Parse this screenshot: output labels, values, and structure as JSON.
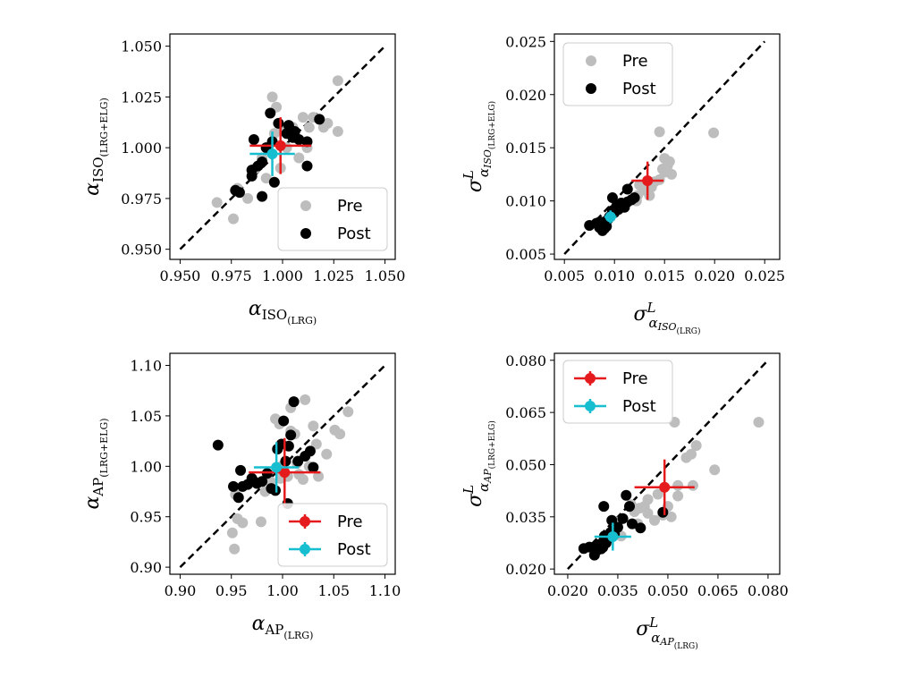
{
  "chart_data": [
    {
      "type": "scatter",
      "panel": "top-left",
      "xlabel": {
        "base": "α",
        "sub": "ISO",
        "subsub": "(LRG)"
      },
      "ylabel": {
        "base": "α",
        "sub": "ISO",
        "subsub": "(LRG+ELG)"
      },
      "xlim": [
        0.945,
        1.055
      ],
      "ylim": [
        0.945,
        1.056
      ],
      "xticks": [
        0.95,
        0.975,
        1.0,
        1.025,
        1.05
      ],
      "yticks": [
        0.95,
        0.975,
        1.0,
        1.025,
        1.05
      ],
      "xtick_labels": [
        "0.950",
        "0.975",
        "1.000",
        "1.025",
        "1.050"
      ],
      "ytick_labels": [
        "0.950",
        "0.975",
        "1.000",
        "1.025",
        "1.050"
      ],
      "legend": {
        "placement": "lower-right",
        "style": "markers",
        "entries": [
          "Pre",
          "Post"
        ]
      },
      "series": [
        {
          "name": "Pre",
          "color": "#bdbdbd",
          "points": [
            [
              0.968,
              0.973
            ],
            [
              0.976,
              0.965
            ],
            [
              0.978,
              0.98
            ],
            [
              0.983,
              0.975
            ],
            [
              0.987,
              0.99
            ],
            [
              0.99,
              0.995
            ],
            [
              0.992,
              0.985
            ],
            [
              0.995,
              1.025
            ],
            [
              0.997,
              1.02
            ],
            [
              1.0,
              1.01
            ],
            [
              1.002,
              1.0
            ],
            [
              1.005,
              1.01
            ],
            [
              1.006,
              1.005
            ],
            [
              1.008,
              0.995
            ],
            [
              1.01,
              1.015
            ],
            [
              1.012,
              1.0
            ],
            [
              1.013,
              1.01
            ],
            [
              1.015,
              1.015
            ],
            [
              1.02,
              1.01
            ],
            [
              1.022,
              1.012
            ],
            [
              1.027,
              1.033
            ],
            [
              1.027,
              1.008
            ],
            [
              0.996,
              1.007
            ],
            [
              0.999,
              0.99
            ]
          ]
        },
        {
          "name": "Post",
          "color": "#000000",
          "points": [
            [
              0.977,
              0.979
            ],
            [
              0.979,
              0.978
            ],
            [
              0.985,
              0.986
            ],
            [
              0.985,
              0.989
            ],
            [
              0.986,
              1.004
            ],
            [
              0.988,
              0.991
            ],
            [
              0.99,
              0.976
            ],
            [
              0.99,
              0.993
            ],
            [
              0.992,
              1.0
            ],
            [
              0.994,
              1.017
            ],
            [
              0.995,
              1.003
            ],
            [
              0.996,
              0.983
            ],
            [
              0.998,
              1.012
            ],
            [
              1.002,
              1.007
            ],
            [
              1.003,
              1.011
            ],
            [
              1.005,
              1.005
            ],
            [
              1.006,
              1.008
            ],
            [
              1.008,
              1.004
            ],
            [
              1.012,
              0.991
            ],
            [
              1.012,
              1.003
            ],
            [
              1.018,
              1.014
            ]
          ]
        }
      ],
      "summary": [
        {
          "name": "Pre",
          "color": "#e41a1c",
          "x": 0.999,
          "y": 1.001,
          "xerr": 0.015,
          "yerr": 0.014
        },
        {
          "name": "Post",
          "color": "#17becf",
          "x": 0.995,
          "y": 0.997,
          "xerr": 0.011,
          "yerr": 0.011
        }
      ]
    },
    {
      "type": "scatter",
      "panel": "top-right",
      "xlabel": {
        "base": "σ",
        "sup": "L",
        "sub": "α",
        "subsub": "ISO",
        "subsubsub": "(LRG)"
      },
      "ylabel": {
        "base": "σ",
        "sup": "L",
        "sub": "α",
        "subsub": "ISO",
        "subsubsub": "(LRG+ELG)"
      },
      "xlim": [
        0.004,
        0.0265
      ],
      "ylim": [
        0.0045,
        0.0257
      ],
      "xticks": [
        0.005,
        0.01,
        0.015,
        0.02,
        0.025
      ],
      "yticks": [
        0.005,
        0.01,
        0.015,
        0.02,
        0.025
      ],
      "xtick_labels": [
        "0.005",
        "0.010",
        "0.015",
        "0.020",
        "0.025"
      ],
      "ytick_labels": [
        "0.005",
        "0.010",
        "0.015",
        "0.020",
        "0.025"
      ],
      "legend": {
        "placement": "upper-left",
        "style": "markers",
        "entries": [
          "Pre",
          "Post"
        ]
      },
      "series": [
        {
          "name": "Pre",
          "color": "#bdbdbd",
          "points": [
            [
              0.0145,
              0.0165
            ],
            [
              0.0199,
              0.0164
            ],
            [
              0.015,
              0.014
            ],
            [
              0.0153,
              0.0133
            ],
            [
              0.0155,
              0.0137
            ],
            [
              0.0148,
              0.013
            ],
            [
              0.0157,
              0.0125
            ],
            [
              0.0145,
              0.012
            ],
            [
              0.014,
              0.0118
            ],
            [
              0.0137,
              0.0113
            ],
            [
              0.013,
              0.011
            ],
            [
              0.0123,
              0.0105
            ],
            [
              0.0115,
              0.01
            ],
            [
              0.011,
              0.0095
            ],
            [
              0.0105,
              0.0098
            ],
            [
              0.0122,
              0.01
            ],
            [
              0.0135,
              0.0105
            ],
            [
              0.01,
              0.009
            ],
            [
              0.0095,
              0.0085
            ],
            [
              0.009,
              0.008
            ],
            [
              0.0125,
              0.0115
            ],
            [
              0.015,
              0.0127
            ]
          ]
        },
        {
          "name": "Post",
          "color": "#000000",
          "points": [
            [
              0.0075,
              0.0077
            ],
            [
              0.0082,
              0.0079
            ],
            [
              0.0085,
              0.0075
            ],
            [
              0.0087,
              0.008
            ],
            [
              0.0088,
              0.0072
            ],
            [
              0.009,
              0.0074
            ],
            [
              0.0092,
              0.0076
            ],
            [
              0.0093,
              0.0082
            ],
            [
              0.0095,
              0.0085
            ],
            [
              0.0097,
              0.0087
            ],
            [
              0.0098,
              0.0091
            ],
            [
              0.01,
              0.0089
            ],
            [
              0.0102,
              0.0095
            ],
            [
              0.0104,
              0.0092
            ],
            [
              0.0098,
              0.0103
            ],
            [
              0.0107,
              0.0098
            ],
            [
              0.011,
              0.0094
            ],
            [
              0.0113,
              0.0099
            ],
            [
              0.0117,
              0.0101
            ],
            [
              0.012,
              0.0103
            ],
            [
              0.0113,
              0.0111
            ],
            [
              0.0085,
              0.008
            ]
          ]
        }
      ],
      "summary": [
        {
          "name": "Pre",
          "color": "#e41a1c",
          "x": 0.0133,
          "y": 0.0119,
          "xerr": 0.0016,
          "yerr": 0.0018
        },
        {
          "name": "Post",
          "color": "#17becf",
          "x": 0.0096,
          "y": 0.0085,
          "xerr": 0.0006,
          "yerr": 0.0006
        }
      ]
    },
    {
      "type": "scatter",
      "panel": "bottom-left",
      "xlabel": {
        "base": "α",
        "sub": "AP",
        "subsub": "(LRG)"
      },
      "ylabel": {
        "base": "α",
        "sub": "AP",
        "subsub": "(LRG+ELG)"
      },
      "xlim": [
        0.89,
        1.11
      ],
      "ylim": [
        0.893,
        1.112
      ],
      "xticks": [
        0.9,
        0.95,
        1.0,
        1.05,
        1.1
      ],
      "yticks": [
        0.9,
        0.95,
        1.0,
        1.05,
        1.1
      ],
      "xtick_labels": [
        "0.90",
        "0.95",
        "1.00",
        "1.05",
        "1.10"
      ],
      "ytick_labels": [
        "0.90",
        "0.95",
        "1.00",
        "1.05",
        "1.10"
      ],
      "legend": {
        "placement": "lower-right",
        "style": "errorbar",
        "entries": [
          "Pre",
          "Post"
        ]
      },
      "series": [
        {
          "name": "Pre",
          "color": "#bdbdbd",
          "points": [
            [
              0.951,
              0.934
            ],
            [
              0.953,
              0.918
            ],
            [
              0.956,
              0.948
            ],
            [
              0.961,
              0.944
            ],
            [
              0.954,
              0.972
            ],
            [
              0.979,
              0.945
            ],
            [
              0.983,
              0.975
            ],
            [
              0.988,
              0.985
            ],
            [
              0.993,
              1.047
            ],
            [
              0.997,
              1.042
            ],
            [
              0.999,
              1.0
            ],
            [
              1.005,
              0.99
            ],
            [
              1.008,
              1.058
            ],
            [
              1.012,
              1.032
            ],
            [
              1.014,
              1.003
            ],
            [
              1.016,
              0.992
            ],
            [
              1.02,
              0.987
            ],
            [
              1.022,
              1.066
            ],
            [
              1.026,
              1.0
            ],
            [
              1.03,
              1.04
            ],
            [
              1.033,
              1.022
            ],
            [
              1.035,
              0.99
            ],
            [
              1.043,
              1.012
            ],
            [
              1.051,
              1.036
            ],
            [
              1.056,
              1.032
            ],
            [
              1.064,
              1.054
            ],
            [
              1.008,
              1.035
            ],
            [
              0.998,
              0.988
            ]
          ]
        },
        {
          "name": "Post",
          "color": "#000000",
          "points": [
            [
              0.937,
              1.021
            ],
            [
              0.952,
              0.98
            ],
            [
              0.957,
              0.969
            ],
            [
              0.959,
              0.996
            ],
            [
              0.961,
              0.98
            ],
            [
              0.966,
              0.982
            ],
            [
              0.97,
              0.988
            ],
            [
              0.972,
              0.985
            ],
            [
              0.975,
              0.983
            ],
            [
              0.98,
              0.985
            ],
            [
              0.985,
              0.993
            ],
            [
              0.989,
              0.978
            ],
            [
              0.993,
              0.976
            ],
            [
              0.995,
              1.017
            ],
            [
              0.999,
              1.022
            ],
            [
              1.001,
              1.045
            ],
            [
              1.003,
              1.005
            ],
            [
              1.006,
              1.02
            ],
            [
              1.008,
              1.031
            ],
            [
              1.011,
              1.064
            ],
            [
              1.015,
              1.005
            ],
            [
              1.022,
              1.01
            ],
            [
              1.027,
              1.015
            ],
            [
              1.03,
              0.999
            ],
            [
              1.005,
              0.963
            ]
          ]
        }
      ],
      "summary": [
        {
          "name": "Pre",
          "color": "#e41a1c",
          "x": 1.002,
          "y": 0.994,
          "xerr": 0.035,
          "yerr": 0.034
        },
        {
          "name": "Post",
          "color": "#17becf",
          "x": 0.994,
          "y": 0.999,
          "xerr": 0.022,
          "yerr": 0.025
        }
      ]
    },
    {
      "type": "scatter",
      "panel": "bottom-right",
      "xlabel": {
        "base": "σ",
        "sup": "L",
        "sub": "α",
        "subsub": "AP",
        "subsubsub": "(LRG)"
      },
      "ylabel": {
        "base": "σ",
        "sup": "L",
        "sub": "α",
        "subsub": "AP",
        "subsubsub": "(LRG+ELG)"
      },
      "xlim": [
        0.016,
        0.0835
      ],
      "ylim": [
        0.0185,
        0.082
      ],
      "xticks": [
        0.02,
        0.035,
        0.05,
        0.065,
        0.08
      ],
      "yticks": [
        0.02,
        0.035,
        0.05,
        0.065,
        0.08
      ],
      "xtick_labels": [
        "0.020",
        "0.035",
        "0.050",
        "0.065",
        "0.080"
      ],
      "ytick_labels": [
        "0.020",
        "0.035",
        "0.050",
        "0.065",
        "0.080"
      ],
      "legend": {
        "placement": "upper-left",
        "style": "errorbar",
        "entries": [
          "Pre",
          "Post"
        ]
      },
      "series": [
        {
          "name": "Pre",
          "color": "#bdbdbd",
          "points": [
            [
              0.0772,
              0.0622
            ],
            [
              0.052,
              0.0622
            ],
            [
              0.0585,
              0.0555
            ],
            [
              0.057,
              0.053
            ],
            [
              0.0555,
              0.052
            ],
            [
              0.064,
              0.0485
            ],
            [
              0.053,
              0.044
            ],
            [
              0.0575,
              0.044
            ],
            [
              0.053,
              0.041
            ],
            [
              0.05,
              0.038
            ],
            [
              0.0485,
              0.0355
            ],
            [
              0.047,
              0.0415
            ],
            [
              0.044,
              0.04
            ],
            [
              0.043,
              0.038
            ],
            [
              0.0415,
              0.0375
            ],
            [
              0.04,
              0.0365
            ],
            [
              0.039,
              0.0385
            ],
            [
              0.035,
              0.0335
            ],
            [
              0.036,
              0.0295
            ],
            [
              0.044,
              0.036
            ],
            [
              0.046,
              0.034
            ],
            [
              0.051,
              0.035
            ],
            [
              0.041,
              0.033
            ]
          ]
        },
        {
          "name": "Post",
          "color": "#000000",
          "points": [
            [
              0.0248,
              0.0259
            ],
            [
              0.0265,
              0.0263
            ],
            [
              0.028,
              0.024
            ],
            [
              0.0283,
              0.0265
            ],
            [
              0.029,
              0.0255
            ],
            [
              0.0293,
              0.027
            ],
            [
              0.03,
              0.0258
            ],
            [
              0.0305,
              0.0262
            ],
            [
              0.0308,
              0.0282
            ],
            [
              0.031,
              0.0295
            ],
            [
              0.0315,
              0.0275
            ],
            [
              0.0318,
              0.0285
            ],
            [
              0.0322,
              0.029
            ],
            [
              0.0328,
              0.0305
            ],
            [
              0.0332,
              0.034
            ],
            [
              0.0335,
              0.031
            ],
            [
              0.034,
              0.03
            ],
            [
              0.035,
              0.032
            ],
            [
              0.0365,
              0.0345
            ],
            [
              0.0375,
              0.0412
            ],
            [
              0.0385,
              0.038
            ],
            [
              0.0393,
              0.033
            ],
            [
              0.0418,
              0.0318
            ],
            [
              0.0308,
              0.038
            ],
            [
              0.0485,
              0.0363
            ],
            [
              0.03,
              0.0265
            ]
          ]
        }
      ],
      "summary": [
        {
          "name": "Pre",
          "color": "#e41a1c",
          "x": 0.049,
          "y": 0.0435,
          "xerr": 0.009,
          "yerr": 0.008
        },
        {
          "name": "Post",
          "color": "#17becf",
          "x": 0.0335,
          "y": 0.0293,
          "xerr": 0.0055,
          "yerr": 0.004
        }
      ]
    }
  ]
}
